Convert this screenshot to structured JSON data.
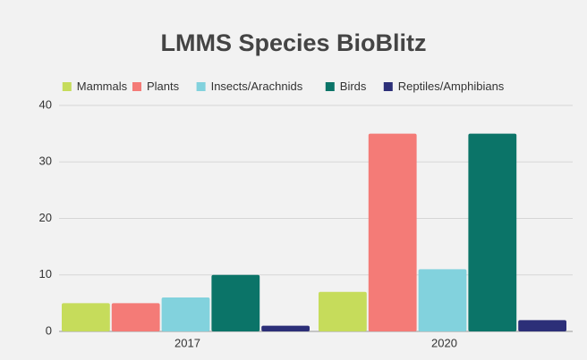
{
  "chart_data": {
    "type": "bar",
    "title": "LMMS Species BioBlitz",
    "categories": [
      "2017",
      "2020"
    ],
    "series": [
      {
        "name": "Mammals",
        "color": "#c6dc5b",
        "values": [
          5,
          7
        ]
      },
      {
        "name": "Plants",
        "color": "#f47b77",
        "values": [
          5,
          35
        ]
      },
      {
        "name": "Insects/Arachnids",
        "color": "#82d2dd",
        "values": [
          6,
          11
        ]
      },
      {
        "name": "Birds",
        "color": "#0b7468",
        "values": [
          10,
          35
        ]
      },
      {
        "name": "Reptiles/Amphibians",
        "color": "#2c2f78",
        "values": [
          1,
          2
        ]
      }
    ],
    "ylim": [
      0,
      40
    ],
    "yticks": [
      0,
      10,
      20,
      30,
      40
    ],
    "grid": true,
    "legend": "top"
  }
}
